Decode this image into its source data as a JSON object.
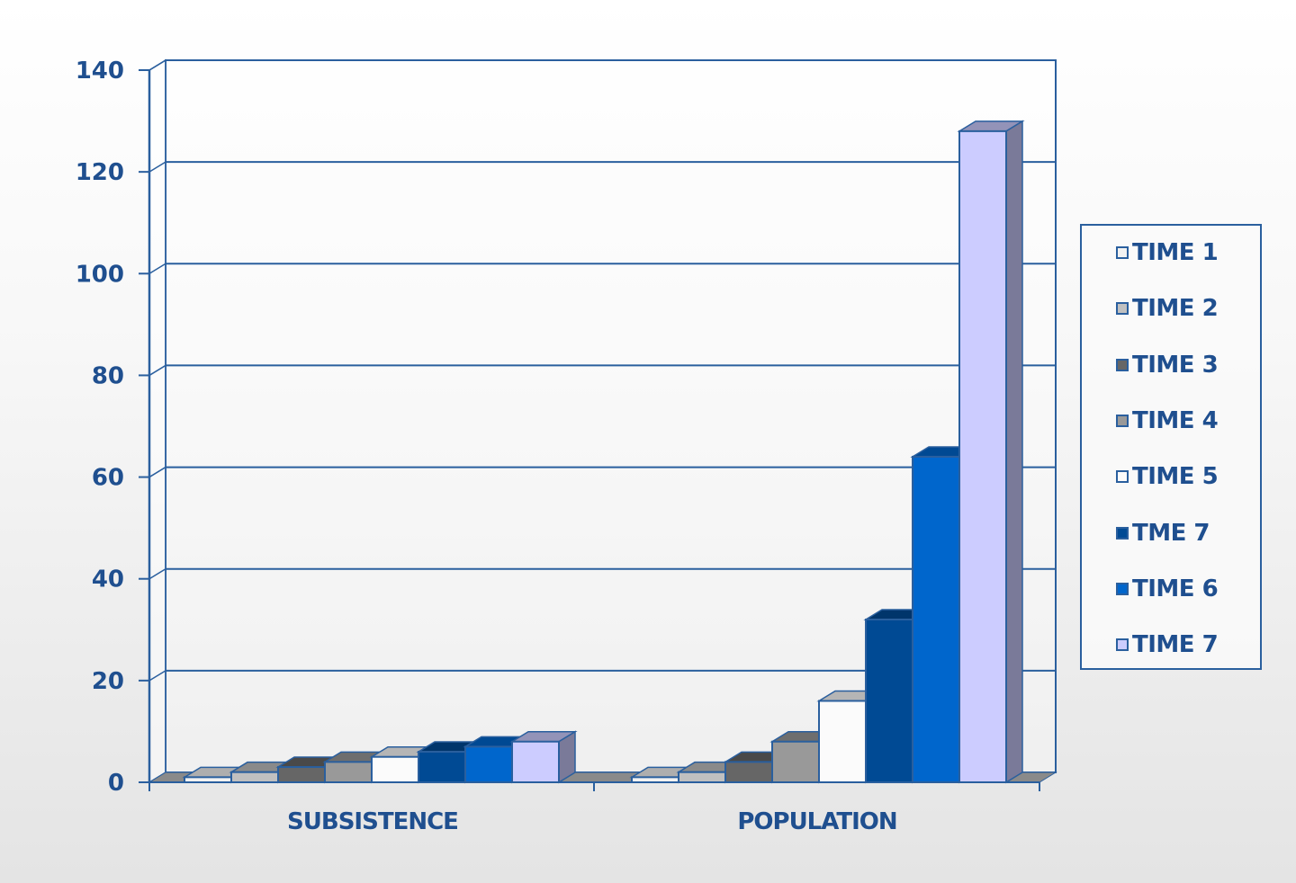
{
  "chart_data": {
    "type": "bar",
    "style": "3d-clustered-column",
    "title": "",
    "xlabel": "",
    "ylabel": "",
    "categories": [
      "SUBSISTENCE",
      "POPULATION"
    ],
    "ylim": [
      0,
      140
    ],
    "yticks": [
      0,
      20,
      40,
      60,
      80,
      100,
      120,
      140
    ],
    "grid": true,
    "legend_position": "right",
    "series": [
      {
        "name": "TIME 1",
        "color": "#f2f2f2",
        "values": [
          1,
          1
        ]
      },
      {
        "name": "TIME 2",
        "color": "#c0c0c0",
        "values": [
          2,
          2
        ]
      },
      {
        "name": "TIME 3",
        "color": "#666666",
        "values": [
          3,
          4
        ]
      },
      {
        "name": "TIME 4",
        "color": "#999999",
        "values": [
          4,
          8
        ]
      },
      {
        "name": "TIME 5",
        "color": "#fbfbfb",
        "values": [
          5,
          16
        ]
      },
      {
        "name": "TME 7",
        "color": "#004a94",
        "values": [
          6,
          32
        ]
      },
      {
        "name": "TIME 6",
        "color": "#0066cc",
        "values": [
          7,
          64
        ]
      },
      {
        "name": "TIME 7",
        "color": "#ccccff",
        "values": [
          8,
          128
        ]
      }
    ]
  },
  "axis": {
    "ticks": [
      "0",
      "20",
      "40",
      "60",
      "80",
      "100",
      "120",
      "140"
    ]
  },
  "legend": {
    "items": [
      "TIME 1",
      "TIME 2",
      "TIME 3",
      "TIME 4",
      "TIME 5",
      "TME 7",
      "TIME 6",
      "TIME 7"
    ]
  },
  "colors": {
    "axis": "#2a5f9e",
    "text": "#1f4f8f"
  }
}
